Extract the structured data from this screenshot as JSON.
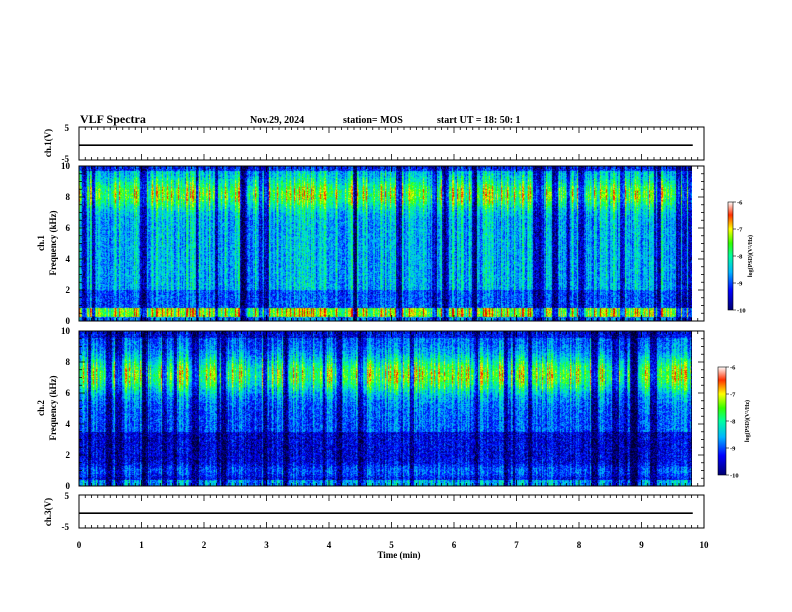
{
  "header": {
    "title": "VLF Spectra",
    "date": "Nov.29, 2024",
    "station": "station= MOS",
    "start": "start  UT  =   18: 50: 1"
  },
  "chart_data": {
    "type": "heatmap",
    "time_axis": {
      "label": "Time  (min)",
      "range": [
        0,
        10
      ],
      "ticks": [
        "0",
        "1",
        "2",
        "3",
        "4",
        "5",
        "6",
        "7",
        "8",
        "9",
        "10"
      ],
      "data_end": 9.82
    },
    "panels": [
      {
        "id": "ch1-voltage",
        "type": "line",
        "ylabel": "ch.1(V)",
        "ylim": [
          -5,
          5
        ],
        "tick_labels": [
          "5",
          "-5"
        ],
        "level": -0.5
      },
      {
        "id": "ch1-spectrogram",
        "type": "heatmap",
        "ylabel_top": "ch.1",
        "ylabel": "Frequency  (kHz)",
        "ylim": [
          0,
          10
        ],
        "tick_labels": [
          "0",
          "2",
          "4",
          "6",
          "8",
          "10"
        ],
        "colorbar": {
          "label": "log(PSD)(V²/Hz)",
          "range": [
            -10,
            -6
          ],
          "ticks": [
            "-6",
            "-7",
            "-8",
            "-9",
            "-10"
          ]
        }
      },
      {
        "id": "ch2-spectrogram",
        "type": "heatmap",
        "ylabel_top": "ch.2",
        "ylabel": "Frequency  (kHz)",
        "ylim": [
          0,
          10
        ],
        "tick_labels": [
          "0",
          "2",
          "4",
          "6",
          "8",
          "10"
        ],
        "colorbar": {
          "label": "log(PSD)(V²/Hz)",
          "range": [
            -10,
            -6
          ],
          "ticks": [
            "-6",
            "-7",
            "-8",
            "-9",
            "-10"
          ]
        }
      },
      {
        "id": "ch3-voltage",
        "type": "line",
        "ylabel": "ch.3(V)",
        "ylim": [
          -5,
          5
        ],
        "tick_labels": [
          "5",
          "-5"
        ],
        "level": -0.5
      }
    ]
  }
}
